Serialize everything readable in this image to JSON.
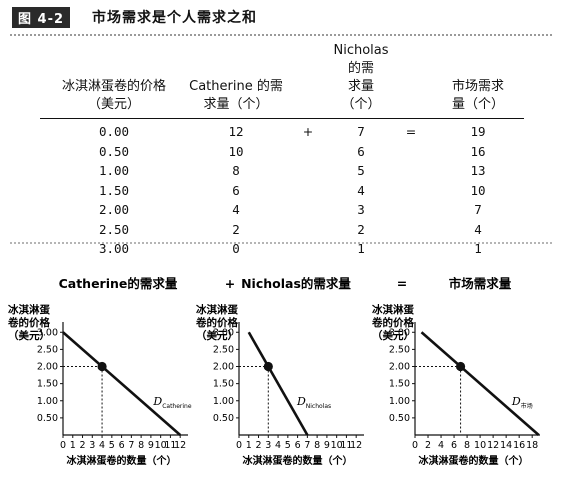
{
  "figure": {
    "label": "图 4-2",
    "title": "市场需求是个人需求之和"
  },
  "table": {
    "headers": [
      [
        "冰淇淋蛋卷的价格",
        "（美元）"
      ],
      [
        "Catherine 的需",
        "求量（个）"
      ],
      [
        "Nicholas 的需",
        "求量（个）"
      ],
      [
        "市场需求",
        "量（个）"
      ]
    ],
    "rows": [
      [
        "0.00",
        "12",
        "7",
        "19"
      ],
      [
        "0.50",
        "10",
        "6",
        "16"
      ],
      [
        "1.00",
        "8",
        "5",
        "13"
      ],
      [
        "1.50",
        "6",
        "4",
        "10"
      ],
      [
        "2.00",
        "4",
        "3",
        "7"
      ],
      [
        "2.50",
        "2",
        "2",
        "4"
      ],
      [
        "3.00",
        "0",
        "1",
        "1"
      ]
    ],
    "plus_symbol": "+",
    "equals_symbol": "="
  },
  "graphs_row": {
    "plus_symbol": "+",
    "equals_symbol": "="
  },
  "chart_data": [
    {
      "type": "line",
      "title": "Catherine的需求量",
      "ylabel_lines": [
        "冰淇淋蛋",
        "卷的价格",
        "（美元）"
      ],
      "xlabel": "冰淇淋蛋卷的数量（个）",
      "x_ticks": [
        "0",
        "1",
        "2",
        "3",
        "4",
        "5",
        "6",
        "7",
        "8",
        "9",
        "10",
        "11",
        "12"
      ],
      "y_ticks": [
        "0.50",
        "1.00",
        "1.50",
        "2.00",
        "2.50",
        "3.00"
      ],
      "xlim": [
        0,
        12.8
      ],
      "ylim": [
        0,
        3.3
      ],
      "series": [
        {
          "x": [
            0,
            12
          ],
          "y": [
            3.0,
            0
          ]
        }
      ],
      "curve_label": {
        "main": "D",
        "sub": "Catherine"
      },
      "highlight_point": {
        "x": 4,
        "y": 2.0
      },
      "color": "#111111"
    },
    {
      "type": "line",
      "title": "Nicholas的需求量",
      "ylabel_lines": [
        "冰淇淋蛋",
        "卷的价格",
        "（美元）"
      ],
      "xlabel": "冰淇淋蛋卷的数量（个）",
      "x_ticks": [
        "0",
        "1",
        "2",
        "3",
        "4",
        "5",
        "6",
        "7",
        "8",
        "9",
        "10",
        "11",
        "12"
      ],
      "y_ticks": [
        "0.50",
        "1.00",
        "1.50",
        "2.00",
        "2.50",
        "3.00"
      ],
      "xlim": [
        0,
        12.8
      ],
      "ylim": [
        0,
        3.3
      ],
      "series": [
        {
          "x": [
            1,
            7
          ],
          "y": [
            3.0,
            0
          ]
        }
      ],
      "curve_label": {
        "main": "D",
        "sub": "Nicholas"
      },
      "highlight_point": {
        "x": 3,
        "y": 2.0
      },
      "color": "#111111"
    },
    {
      "type": "line",
      "title": "市场需求量",
      "ylabel_lines": [
        "冰淇淋蛋",
        "卷的价格",
        "（美元）"
      ],
      "xlabel": "冰淇淋蛋卷的数量（个）",
      "x_ticks": [
        "0",
        "2",
        "4",
        "6",
        "8",
        "10",
        "12",
        "14",
        "16",
        "18"
      ],
      "y_ticks": [
        "0.50",
        "1.00",
        "1.50",
        "2.00",
        "2.50",
        "3.00"
      ],
      "xlim": [
        0,
        19.2
      ],
      "ylim": [
        0,
        3.3
      ],
      "series": [
        {
          "x": [
            1,
            19
          ],
          "y": [
            3.0,
            0
          ]
        }
      ],
      "curve_label": {
        "main": "D",
        "sub": "市场"
      },
      "highlight_point": {
        "x": 7,
        "y": 2.0
      },
      "color": "#111111"
    }
  ]
}
